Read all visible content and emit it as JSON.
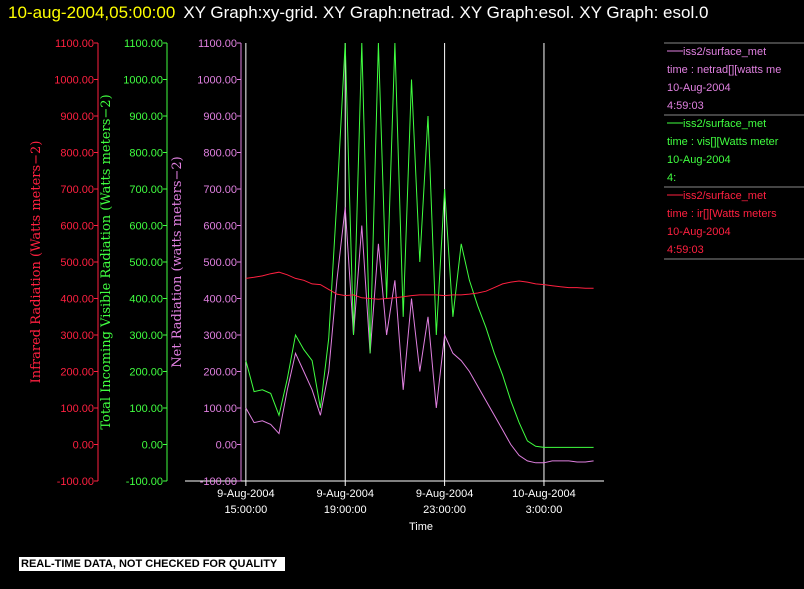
{
  "header": {
    "timestamp": "10-aug-2004,05:00:00",
    "title": "XY Graph:xy-grid.  XY Graph:netrad.  XY Graph:esol.  XY Graph: esol.0"
  },
  "note": "REAL-TIME DATA, NOT CHECKED FOR QUALITY",
  "chart_data": {
    "type": "line",
    "xlabel": "Time",
    "grid": true,
    "xlim": [
      "2004-08-09T12:33:00",
      "2004-08-10T05:25:00"
    ],
    "xticks": [
      {
        "value": "2004-08-09T15:00:00",
        "label": [
          "9-Aug-2004",
          "15:00:00"
        ]
      },
      {
        "value": "2004-08-09T19:00:00",
        "label": [
          "9-Aug-2004",
          "19:00:00"
        ]
      },
      {
        "value": "2004-08-09T23:00:00",
        "label": [
          "9-Aug-2004",
          "23:00:00"
        ]
      },
      {
        "value": "2004-08-10T03:00:00",
        "label": [
          "10-Aug-2004",
          "3:00:00"
        ]
      }
    ],
    "x": [
      "2004-08-09T15:00:00",
      "2004-08-09T15:20:00",
      "2004-08-09T15:40:00",
      "2004-08-09T16:00:00",
      "2004-08-09T16:20:00",
      "2004-08-09T16:40:00",
      "2004-08-09T17:00:00",
      "2004-08-09T17:20:00",
      "2004-08-09T17:40:00",
      "2004-08-09T18:00:00",
      "2004-08-09T18:20:00",
      "2004-08-09T18:40:00",
      "2004-08-09T19:00:00",
      "2004-08-09T19:20:00",
      "2004-08-09T19:40:00",
      "2004-08-09T20:00:00",
      "2004-08-09T20:20:00",
      "2004-08-09T20:40:00",
      "2004-08-09T21:00:00",
      "2004-08-09T21:20:00",
      "2004-08-09T21:40:00",
      "2004-08-09T22:00:00",
      "2004-08-09T22:20:00",
      "2004-08-09T22:40:00",
      "2004-08-09T23:00:00",
      "2004-08-09T23:20:00",
      "2004-08-09T23:40:00",
      "2004-08-10T00:00:00",
      "2004-08-10T00:20:00",
      "2004-08-10T00:40:00",
      "2004-08-10T01:00:00",
      "2004-08-10T01:20:00",
      "2004-08-10T01:40:00",
      "2004-08-10T02:00:00",
      "2004-08-10T02:20:00",
      "2004-08-10T02:40:00",
      "2004-08-10T03:00:00",
      "2004-08-10T03:20:00",
      "2004-08-10T03:40:00",
      "2004-08-10T04:00:00",
      "2004-08-10T04:20:00",
      "2004-08-10T04:40:00",
      "2004-08-10T05:00:00"
    ],
    "y_axes": [
      {
        "label": "Infrared Radiation (Watts meters−2)",
        "color": "#ff2040",
        "ylim": [
          -100,
          1100
        ],
        "yticks": [
          {
            "value": -100,
            "label": "-100.00"
          },
          {
            "value": 0,
            "label": "0.00"
          },
          {
            "value": 100,
            "label": "100.00"
          },
          {
            "value": 200,
            "label": "200.00"
          },
          {
            "value": 300,
            "label": "300.00"
          },
          {
            "value": 400,
            "label": "400.00"
          },
          {
            "value": 500,
            "label": "500.00"
          },
          {
            "value": 600,
            "label": "600.00"
          },
          {
            "value": 700,
            "label": "700.00"
          },
          {
            "value": 800,
            "label": "800.00"
          },
          {
            "value": 900,
            "label": "900.00"
          },
          {
            "value": 1000,
            "label": "1000.00"
          },
          {
            "value": 1100,
            "label": "1100.00"
          }
        ]
      },
      {
        "label": "Total Incoming Visible Radiation (Watts meters−2)",
        "color": "#40ff40",
        "ylim": [
          -100,
          1100
        ],
        "yticks": [
          {
            "value": -100,
            "label": "-100.00"
          },
          {
            "value": 0,
            "label": "0.00"
          },
          {
            "value": 100,
            "label": "100.00"
          },
          {
            "value": 200,
            "label": "200.00"
          },
          {
            "value": 300,
            "label": "300.00"
          },
          {
            "value": 400,
            "label": "400.00"
          },
          {
            "value": 500,
            "label": "500.00"
          },
          {
            "value": 600,
            "label": "600.00"
          },
          {
            "value": 700,
            "label": "700.00"
          },
          {
            "value": 800,
            "label": "800.00"
          },
          {
            "value": 900,
            "label": "900.00"
          },
          {
            "value": 1000,
            "label": "1000.00"
          },
          {
            "value": 1100,
            "label": "1100.00"
          }
        ]
      },
      {
        "label": "Net Radiation (watts meters−2)",
        "color": "#e080e0",
        "ylim": [
          -100,
          1100
        ],
        "yticks": [
          {
            "value": -100,
            "label": "-100.00"
          },
          {
            "value": 0,
            "label": "0.00"
          },
          {
            "value": 100,
            "label": "100.00"
          },
          {
            "value": 200,
            "label": "200.00"
          },
          {
            "value": 300,
            "label": "300.00"
          },
          {
            "value": 400,
            "label": "400.00"
          },
          {
            "value": 500,
            "label": "500.00"
          },
          {
            "value": 600,
            "label": "600.00"
          },
          {
            "value": 700,
            "label": "700.00"
          },
          {
            "value": 800,
            "label": "800.00"
          },
          {
            "value": 900,
            "label": "900.00"
          },
          {
            "value": 1000,
            "label": "1000.00"
          },
          {
            "value": 1100,
            "label": "1100.00"
          }
        ]
      }
    ],
    "series": [
      {
        "name": "iss2/surface_met",
        "legend_lines": [
          "time : netrad[][watts me",
          "10-Aug-2004",
          "4:59:03"
        ],
        "color": "#e080e0",
        "axis": 2,
        "values": [
          100,
          60,
          65,
          55,
          30,
          150,
          250,
          200,
          150,
          80,
          200,
          450,
          650,
          300,
          600,
          250,
          550,
          300,
          450,
          150,
          400,
          200,
          350,
          100,
          300,
          250,
          230,
          200,
          160,
          120,
          80,
          40,
          0,
          -30,
          -45,
          -50,
          -50,
          -45,
          -45,
          -45,
          -48,
          -48,
          -45
        ]
      },
      {
        "name": "iss2/surface_met",
        "legend_lines": [
          "time : vis[][Watts meter",
          "10-Aug-2004",
          "4:"
        ],
        "color": "#40ff40",
        "axis": 1,
        "values": [
          230,
          145,
          150,
          140,
          80,
          180,
          300,
          260,
          230,
          100,
          290,
          670,
          1100,
          300,
          1100,
          250,
          1100,
          400,
          1100,
          350,
          1000,
          500,
          900,
          300,
          700,
          350,
          550,
          450,
          380,
          320,
          250,
          190,
          120,
          60,
          10,
          -5,
          -8,
          -8,
          -8,
          -8,
          -8,
          -8,
          -8
        ]
      },
      {
        "name": "iss2/surface_met",
        "legend_lines": [
          "time : ir[][Watts meters",
          "10-Aug-2004",
          "4:59:03"
        ],
        "color": "#ff2040",
        "axis": 0,
        "values": [
          455,
          458,
          462,
          468,
          472,
          465,
          455,
          450,
          440,
          438,
          425,
          412,
          408,
          410,
          402,
          400,
          398,
          400,
          402,
          405,
          408,
          410,
          410,
          410,
          408,
          410,
          410,
          412,
          415,
          420,
          430,
          440,
          445,
          448,
          445,
          440,
          438,
          435,
          432,
          430,
          430,
          428,
          428
        ]
      }
    ]
  }
}
